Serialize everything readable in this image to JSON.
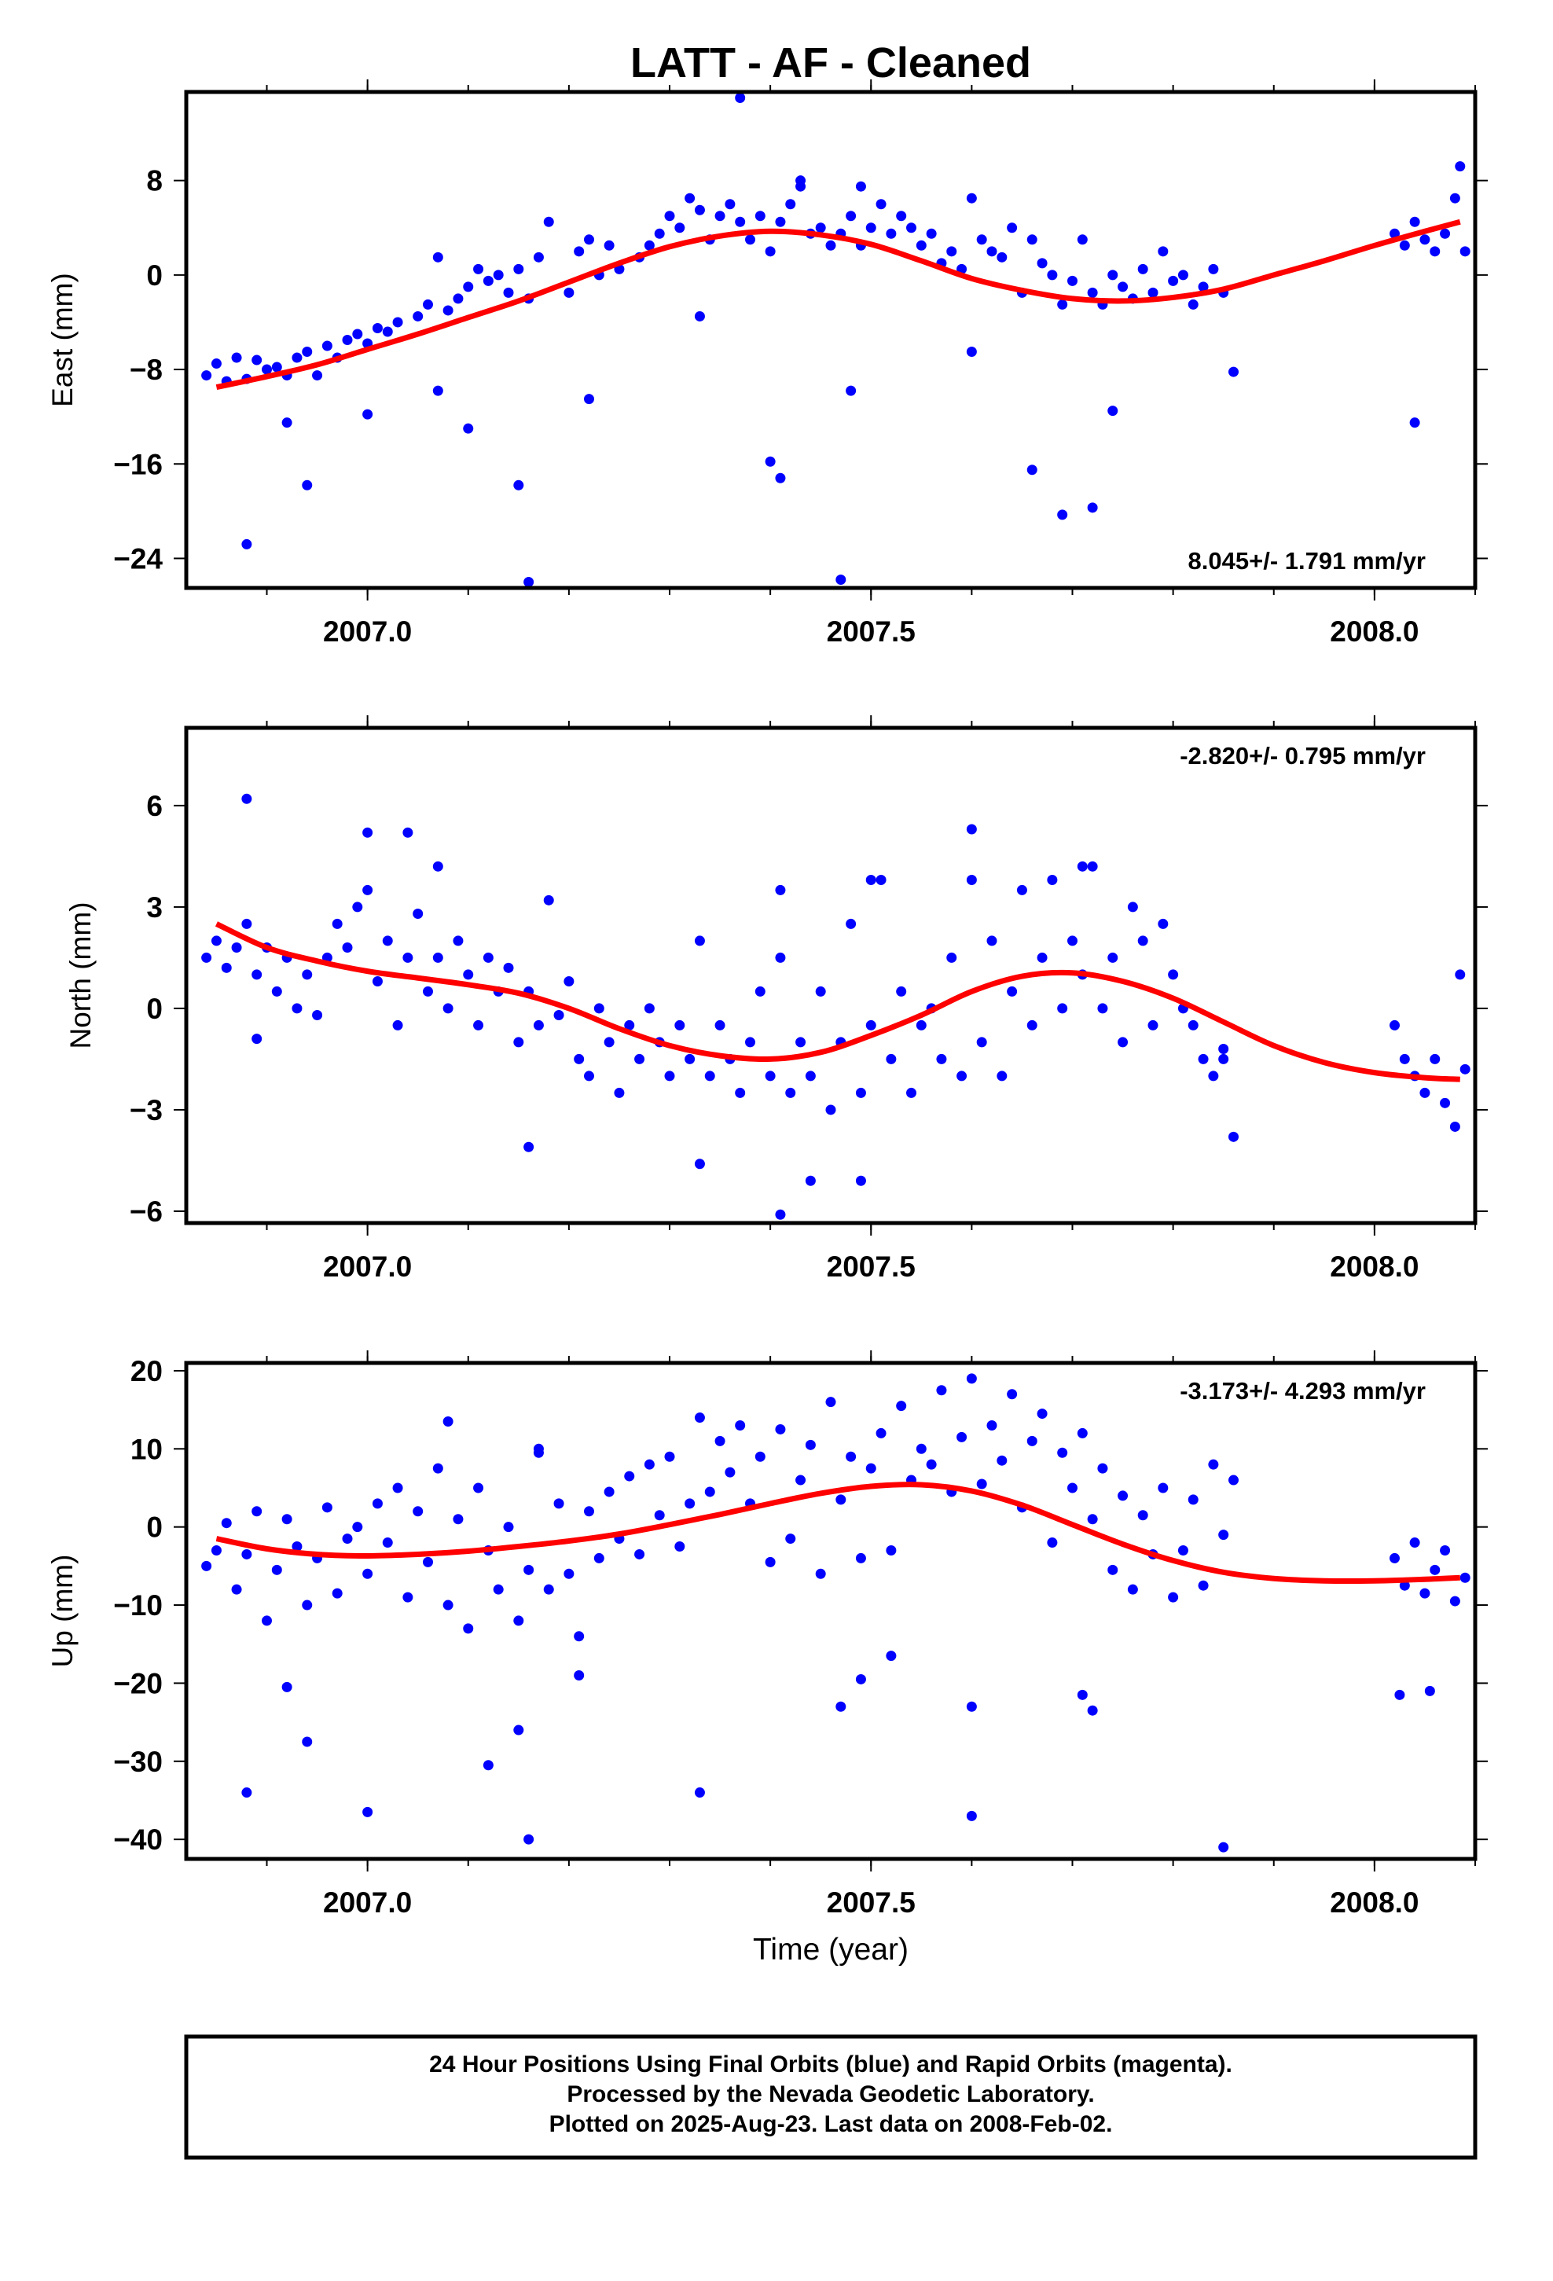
{
  "title": "LATT  - AF - Cleaned",
  "xlabel": "Time (year)",
  "caption": [
    "24 Hour Positions Using Final Orbits (blue) and Rapid Orbits (magenta).",
    "Processed by the Nevada Geodetic Laboratory.",
    "Plotted on 2025-Aug-23. Last data on 2008-Feb-02."
  ],
  "colors": {
    "points": "#0000ff",
    "fit": "#ff0000",
    "frame": "#000000"
  },
  "chart_data": [
    {
      "type": "scatter",
      "ylabel": "East (mm)",
      "rate_label": "8.045+/- 1.791 mm/yr",
      "xlim": [
        2006.82,
        2008.1
      ],
      "ylim": [
        -26.5,
        15.5
      ],
      "xticks": [
        2007.0,
        2007.5,
        2008.0
      ],
      "xtick_labels": [
        "2007.0",
        "2007.5",
        "2008.0"
      ],
      "yticks": [
        -24,
        -16,
        -8,
        0,
        8
      ],
      "ytick_labels": [
        "−24",
        "−16",
        "−8",
        "0",
        "8"
      ],
      "fit": {
        "x": [
          2006.85,
          2006.9,
          2006.95,
          2007.0,
          2007.05,
          2007.1,
          2007.15,
          2007.2,
          2007.25,
          2007.3,
          2007.35,
          2007.4,
          2007.45,
          2007.5,
          2007.55,
          2007.6,
          2007.65,
          2007.7,
          2007.75,
          2007.8,
          2007.85,
          2007.9,
          2007.95,
          2008.0,
          2008.05,
          2008.085
        ],
        "y": [
          -9.5,
          -8.6,
          -7.6,
          -6.3,
          -5.0,
          -3.6,
          -2.2,
          -0.6,
          1.0,
          2.4,
          3.3,
          3.7,
          3.4,
          2.6,
          1.2,
          -0.3,
          -1.3,
          -2.0,
          -2.2,
          -1.9,
          -1.2,
          0.0,
          1.2,
          2.5,
          3.7,
          4.5
        ]
      },
      "points": {
        "x": [
          2006.84,
          2006.85,
          2006.86,
          2006.87,
          2006.88,
          2006.89,
          2006.9,
          2006.91,
          2006.92,
          2006.93,
          2006.94,
          2006.95,
          2006.96,
          2006.97,
          2006.98,
          2006.99,
          2007.0,
          2007.01,
          2007.02,
          2007.03,
          2007.05,
          2007.06,
          2007.07,
          2007.08,
          2007.09,
          2007.1,
          2007.11,
          2007.12,
          2007.13,
          2007.14,
          2007.15,
          2007.16,
          2007.17,
          2007.18,
          2007.2,
          2007.21,
          2007.22,
          2007.23,
          2007.24,
          2007.25,
          2007.27,
          2007.28,
          2007.29,
          2007.3,
          2007.31,
          2007.32,
          2007.33,
          2007.34,
          2007.35,
          2007.36,
          2007.37,
          2007.38,
          2007.39,
          2007.4,
          2007.41,
          2007.42,
          2007.43,
          2007.44,
          2007.45,
          2007.46,
          2007.47,
          2007.48,
          2007.49,
          2007.5,
          2007.51,
          2007.52,
          2007.53,
          2007.54,
          2007.55,
          2007.56,
          2007.57,
          2007.58,
          2007.59,
          2007.6,
          2007.61,
          2007.62,
          2007.63,
          2007.64,
          2007.65,
          2007.66,
          2007.67,
          2007.68,
          2007.69,
          2007.7,
          2007.71,
          2007.72,
          2007.73,
          2007.74,
          2007.75,
          2007.76,
          2007.77,
          2007.78,
          2007.79,
          2007.8,
          2007.81,
          2007.82,
          2007.83,
          2007.84,
          2007.85,
          2007.86,
          2008.02,
          2008.03,
          2008.04,
          2008.05,
          2008.06,
          2008.07,
          2008.08,
          2008.09,
          2006.88,
          2006.92,
          2006.94,
          2007.0,
          2007.07,
          2007.1,
          2007.15,
          2007.16,
          2007.22,
          2007.33,
          2007.37,
          2007.4,
          2007.41,
          2007.47,
          2007.48,
          2007.6,
          2007.66,
          2007.69,
          2007.72,
          2007.74,
          2008.04,
          2007.43,
          2007.49,
          2008.085
        ],
        "y": [
          -8.5,
          -7.5,
          -9.0,
          -7.0,
          -8.8,
          -7.2,
          -8.0,
          -7.8,
          -8.5,
          -7.0,
          -6.5,
          -8.5,
          -6.0,
          -7.0,
          -5.5,
          -5.0,
          -5.8,
          -4.5,
          -4.8,
          -4.0,
          -3.5,
          -2.5,
          1.5,
          -3.0,
          -2.0,
          -1.0,
          0.5,
          -0.5,
          0.0,
          -1.5,
          0.5,
          -2.0,
          1.5,
          4.5,
          -1.5,
          2.0,
          3.0,
          0.0,
          2.5,
          0.5,
          1.5,
          2.5,
          3.5,
          5.0,
          4.0,
          6.5,
          5.5,
          3.0,
          5.0,
          6.0,
          4.5,
          3.0,
          5.0,
          2.0,
          4.5,
          6.0,
          7.5,
          3.5,
          4.0,
          2.5,
          3.5,
          5.0,
          2.5,
          4.0,
          6.0,
          3.5,
          5.0,
          4.0,
          2.5,
          3.5,
          1.0,
          2.0,
          0.5,
          6.5,
          3.0,
          2.0,
          1.5,
          4.0,
          -1.5,
          3.0,
          1.0,
          0.0,
          -2.5,
          -0.5,
          3.0,
          -1.5,
          -2.5,
          0.0,
          -1.0,
          -2.0,
          0.5,
          -1.5,
          2.0,
          -0.5,
          0.0,
          -2.5,
          -1.0,
          0.5,
          -1.5,
          -8.2,
          3.5,
          2.5,
          4.5,
          3.0,
          2.0,
          3.5,
          6.5,
          2.0,
          -22.8,
          -12.5,
          -17.8,
          -11.8,
          -9.8,
          -13.0,
          -17.8,
          -26.0,
          -10.5,
          -3.5,
          15.0,
          -15.8,
          -17.2,
          -25.8,
          -9.8,
          -6.5,
          -16.5,
          -20.3,
          -19.7,
          -11.5,
          -12.5,
          8.0,
          7.5,
          9.2
        ]
      }
    },
    {
      "type": "scatter",
      "ylabel": "North (mm)",
      "rate_label": "-2.820+/- 0.795 mm/yr",
      "xlim": [
        2006.82,
        2008.1
      ],
      "ylim": [
        -6.35,
        8.3
      ],
      "xticks": [
        2007.0,
        2007.5,
        2008.0
      ],
      "xtick_labels": [
        "2007.0",
        "2007.5",
        "2008.0"
      ],
      "yticks": [
        -6,
        -3,
        0,
        3,
        6
      ],
      "ytick_labels": [
        "−6",
        "−3",
        "0",
        "3",
        "6"
      ],
      "fit": {
        "x": [
          2006.85,
          2006.9,
          2006.95,
          2007.0,
          2007.05,
          2007.1,
          2007.15,
          2007.2,
          2007.25,
          2007.3,
          2007.35,
          2007.4,
          2007.45,
          2007.5,
          2007.55,
          2007.6,
          2007.65,
          2007.7,
          2007.75,
          2007.8,
          2007.85,
          2007.9,
          2007.95,
          2008.0,
          2008.05,
          2008.085
        ],
        "y": [
          2.5,
          1.8,
          1.4,
          1.1,
          0.9,
          0.7,
          0.45,
          0.0,
          -0.6,
          -1.1,
          -1.4,
          -1.5,
          -1.3,
          -0.8,
          -0.2,
          0.5,
          0.95,
          1.05,
          0.8,
          0.3,
          -0.4,
          -1.1,
          -1.6,
          -1.9,
          -2.05,
          -2.1
        ]
      },
      "points": {
        "x": [
          2006.84,
          2006.85,
          2006.86,
          2006.87,
          2006.88,
          2006.89,
          2006.9,
          2006.91,
          2006.92,
          2006.93,
          2006.94,
          2006.95,
          2006.96,
          2006.97,
          2006.98,
          2006.99,
          2007.0,
          2007.01,
          2007.02,
          2007.03,
          2007.04,
          2007.05,
          2007.06,
          2007.07,
          2007.08,
          2007.09,
          2007.1,
          2007.11,
          2007.12,
          2007.13,
          2007.14,
          2007.15,
          2007.16,
          2007.17,
          2007.18,
          2007.19,
          2007.2,
          2007.21,
          2007.22,
          2007.23,
          2007.24,
          2007.25,
          2007.26,
          2007.27,
          2007.28,
          2007.29,
          2007.3,
          2007.31,
          2007.32,
          2007.33,
          2007.34,
          2007.35,
          2007.36,
          2007.37,
          2007.38,
          2007.39,
          2007.4,
          2007.41,
          2007.42,
          2007.43,
          2007.44,
          2007.45,
          2007.46,
          2007.47,
          2007.48,
          2007.49,
          2007.5,
          2007.51,
          2007.52,
          2007.53,
          2007.54,
          2007.55,
          2007.56,
          2007.57,
          2007.58,
          2007.59,
          2007.6,
          2007.61,
          2007.62,
          2007.63,
          2007.64,
          2007.65,
          2007.66,
          2007.67,
          2007.68,
          2007.69,
          2007.7,
          2007.71,
          2007.72,
          2007.73,
          2007.74,
          2007.75,
          2007.76,
          2007.77,
          2007.78,
          2007.79,
          2007.8,
          2007.81,
          2007.82,
          2007.83,
          2007.84,
          2007.85,
          2007.86,
          2008.02,
          2008.03,
          2008.04,
          2008.05,
          2008.06,
          2008.07,
          2008.08,
          2008.09,
          2006.88,
          2007.0,
          2007.04,
          2007.16,
          2007.33,
          2007.41,
          2007.41,
          2007.44,
          2007.49,
          2007.5,
          2007.6,
          2007.71,
          2007.85,
          2008.085,
          2006.89,
          2007.07
        ],
        "y": [
          1.5,
          2.0,
          1.2,
          1.8,
          2.5,
          1.0,
          1.8,
          0.5,
          1.5,
          0.0,
          1.0,
          -0.2,
          1.5,
          2.5,
          1.8,
          3.0,
          3.5,
          0.8,
          2.0,
          -0.5,
          1.5,
          2.8,
          0.5,
          1.5,
          0.0,
          2.0,
          1.0,
          -0.5,
          1.5,
          0.5,
          1.2,
          -1.0,
          0.5,
          -0.5,
          3.2,
          -0.2,
          0.8,
          -1.5,
          -2.0,
          0.0,
          -1.0,
          -2.5,
          -0.5,
          -1.5,
          0.0,
          -1.0,
          -2.0,
          -0.5,
          -1.5,
          2.0,
          -2.0,
          -0.5,
          -1.5,
          -2.5,
          -1.0,
          0.5,
          -2.0,
          1.5,
          -2.5,
          -1.0,
          -2.0,
          0.5,
          -3.0,
          -1.0,
          2.5,
          -2.5,
          -0.5,
          3.8,
          -1.5,
          0.5,
          -2.5,
          -0.5,
          0.0,
          -1.5,
          1.5,
          -2.0,
          3.8,
          -1.0,
          2.0,
          -2.0,
          0.5,
          3.5,
          -0.5,
          1.5,
          3.8,
          0.0,
          2.0,
          1.0,
          4.2,
          0.0,
          1.5,
          -1.0,
          3.0,
          2.0,
          -0.5,
          2.5,
          1.0,
          0.0,
          -0.5,
          -1.5,
          -2.0,
          -1.5,
          -3.8,
          -0.5,
          -1.5,
          -2.0,
          -2.5,
          -1.5,
          -2.8,
          -3.5,
          -1.8,
          6.2,
          5.2,
          5.2,
          -4.1,
          -4.6,
          -6.1,
          3.5,
          -5.1,
          -5.1,
          3.8,
          5.3,
          4.2,
          -1.2,
          1.0,
          -0.9,
          4.2
        ],
        "y_scale_note": ""
      }
    },
    {
      "type": "scatter",
      "ylabel": "Up (mm)",
      "rate_label": "-3.173+/- 4.293 mm/yr",
      "xlim": [
        2006.82,
        2008.1
      ],
      "ylim": [
        -42.5,
        21.0
      ],
      "xticks": [
        2007.0,
        2007.5,
        2008.0
      ],
      "xtick_labels": [
        "2007.0",
        "2007.5",
        "2008.0"
      ],
      "yticks": [
        -40,
        -30,
        -20,
        -10,
        0,
        10,
        20
      ],
      "ytick_labels": [
        "−40",
        "−30",
        "−20",
        "−10",
        "0",
        "10",
        "20"
      ],
      "fit": {
        "x": [
          2006.85,
          2006.9,
          2006.95,
          2007.0,
          2007.05,
          2007.1,
          2007.15,
          2007.2,
          2007.25,
          2007.3,
          2007.35,
          2007.4,
          2007.45,
          2007.5,
          2007.55,
          2007.6,
          2007.65,
          2007.7,
          2007.75,
          2007.8,
          2007.85,
          2007.9,
          2007.95,
          2008.0,
          2008.05,
          2008.085
        ],
        "y": [
          -1.5,
          -2.8,
          -3.5,
          -3.7,
          -3.5,
          -3.1,
          -2.5,
          -1.8,
          -0.9,
          0.3,
          1.6,
          3.0,
          4.3,
          5.2,
          5.4,
          4.6,
          2.8,
          0.3,
          -2.2,
          -4.3,
          -5.8,
          -6.6,
          -6.9,
          -6.9,
          -6.7,
          -6.5
        ]
      },
      "points": {
        "x": [
          2006.84,
          2006.85,
          2006.86,
          2006.87,
          2006.88,
          2006.89,
          2006.9,
          2006.91,
          2006.92,
          2006.93,
          2006.94,
          2006.95,
          2006.96,
          2006.97,
          2006.98,
          2006.99,
          2007.0,
          2007.01,
          2007.02,
          2007.03,
          2007.04,
          2007.05,
          2007.06,
          2007.07,
          2007.08,
          2007.09,
          2007.1,
          2007.11,
          2007.12,
          2007.13,
          2007.14,
          2007.15,
          2007.16,
          2007.17,
          2007.18,
          2007.19,
          2007.2,
          2007.21,
          2007.22,
          2007.23,
          2007.24,
          2007.25,
          2007.26,
          2007.27,
          2007.28,
          2007.29,
          2007.3,
          2007.31,
          2007.32,
          2007.33,
          2007.34,
          2007.35,
          2007.36,
          2007.37,
          2007.38,
          2007.39,
          2007.4,
          2007.41,
          2007.42,
          2007.43,
          2007.44,
          2007.45,
          2007.46,
          2007.47,
          2007.48,
          2007.49,
          2007.5,
          2007.51,
          2007.52,
          2007.53,
          2007.54,
          2007.55,
          2007.56,
          2007.57,
          2007.58,
          2007.59,
          2007.6,
          2007.61,
          2007.62,
          2007.63,
          2007.64,
          2007.65,
          2007.66,
          2007.67,
          2007.68,
          2007.69,
          2007.7,
          2007.71,
          2007.72,
          2007.73,
          2007.74,
          2007.75,
          2007.76,
          2007.77,
          2007.78,
          2007.79,
          2007.8,
          2007.81,
          2007.82,
          2007.83,
          2007.84,
          2007.85,
          2007.86,
          2008.02,
          2008.03,
          2008.04,
          2008.05,
          2008.06,
          2008.07,
          2008.08,
          2008.09,
          2006.88,
          2006.92,
          2006.94,
          2007.0,
          2007.12,
          2007.15,
          2007.16,
          2007.21,
          2007.33,
          2007.47,
          2007.49,
          2007.52,
          2007.6,
          2007.6,
          2007.71,
          2007.72,
          2007.85,
          2008.025,
          2008.055,
          2007.08,
          2007.17
        ],
        "y": [
          -5.0,
          -3.0,
          0.5,
          -8.0,
          -3.5,
          2.0,
          -12.0,
          -5.5,
          1.0,
          -2.5,
          -10.0,
          -4.0,
          2.5,
          -8.5,
          -1.5,
          0.0,
          -6.0,
          3.0,
          -2.0,
          5.0,
          -9.0,
          2.0,
          -4.5,
          7.5,
          -10.0,
          1.0,
          -13.0,
          5.0,
          -3.0,
          -8.0,
          0.0,
          -12.0,
          -5.5,
          9.5,
          -8.0,
          3.0,
          -6.0,
          -14.0,
          2.0,
          -4.0,
          4.5,
          -1.5,
          6.5,
          -3.5,
          8.0,
          1.5,
          9.0,
          -2.5,
          3.0,
          14.0,
          4.5,
          11.0,
          7.0,
          13.0,
          3.0,
          9.0,
          -4.5,
          12.5,
          -1.5,
          6.0,
          10.5,
          -6.0,
          16.0,
          3.5,
          9.0,
          -4.0,
          7.5,
          12.0,
          -3.0,
          15.5,
          6.0,
          10.0,
          8.0,
          17.5,
          4.5,
          11.5,
          19.0,
          5.5,
          13.0,
          8.5,
          17.0,
          2.5,
          11.0,
          14.5,
          -2.0,
          9.5,
          5.0,
          12.0,
          1.0,
          7.5,
          -5.5,
          4.0,
          -8.0,
          1.5,
          -3.5,
          5.0,
          -9.0,
          -3.0,
          3.5,
          -7.5,
          8.0,
          -1.0,
          6.0,
          -4.0,
          -7.5,
          -2.0,
          -8.5,
          -5.5,
          -3.0,
          -9.5,
          -6.5,
          -34.0,
          -20.5,
          -27.5,
          -36.5,
          -30.5,
          -26.0,
          -40.0,
          -19.0,
          -34.0,
          -23.0,
          -19.5,
          -16.5,
          -37.0,
          -23.0,
          -21.5,
          -23.5,
          -41.0,
          -21.5,
          -21.0,
          13.5,
          10.0
        ]
      }
    }
  ]
}
